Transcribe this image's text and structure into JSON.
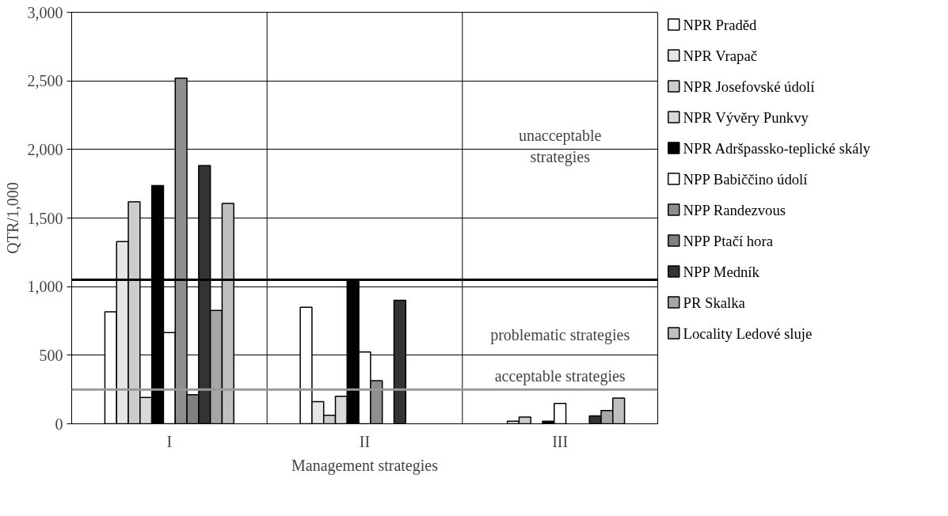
{
  "chart_data": {
    "type": "bar",
    "xlabel": "Management strategies",
    "ylabel": "QTR/1,000",
    "categories": [
      "I",
      "II",
      "III"
    ],
    "series": [
      {
        "name": "NPR Praděd",
        "color": "#ffffff",
        "values": [
          817,
          850,
          null
        ]
      },
      {
        "name": "NPR Vrapač",
        "color": "#e6e6e6",
        "values": [
          1329,
          161,
          19
        ]
      },
      {
        "name": "NPR Josefovské údolí",
        "color": "#cccccc",
        "values": [
          1618,
          62,
          49
        ]
      },
      {
        "name": "NPR Vývěry Punkvy",
        "color": "#d9d9d9",
        "values": [
          192,
          200,
          null
        ]
      },
      {
        "name": "NPR Adršpassko-teplické skály",
        "color": "#000000",
        "values": [
          1736,
          1050,
          19
        ]
      },
      {
        "name": "NPP Babiččino údolí",
        "color": "#ffffff",
        "values": [
          665,
          524,
          149
        ]
      },
      {
        "name": "NPP Randezvous",
        "color": "#8c8e90",
        "values": [
          2520,
          314,
          null
        ]
      },
      {
        "name": "NPP Ptačí hora",
        "color": "#808080",
        "values": [
          212,
          null,
          null
        ]
      },
      {
        "name": "NPP Medník",
        "color": "#333333",
        "values": [
          1882,
          900,
          58
        ]
      },
      {
        "name": "PR Skalka",
        "color": "#a6a6a6",
        "values": [
          827,
          null,
          96
        ]
      },
      {
        "name": "Locality Ledové sluje",
        "color": "#bfbfbf",
        "values": [
          1607,
          null,
          188
        ]
      }
    ],
    "ylim": [
      0,
      3000
    ],
    "yticks": [
      0,
      {
        "value": 500,
        "label": "500"
      },
      {
        "value": 1000,
        "label": "1,000"
      },
      {
        "value": 1500,
        "label": "1,500"
      },
      {
        "value": 2000,
        "label": "2,000"
      },
      {
        "value": 2500,
        "label": "2,500"
      },
      {
        "value": 3000,
        "label": "3,000"
      }
    ],
    "ref_lines": [
      {
        "axis": "y",
        "value": 1050,
        "color": "#000000"
      },
      {
        "axis": "y",
        "value": 250,
        "color": "#999999"
      }
    ],
    "annotations": [
      "unacceptable\nstrategies",
      "problematic strategies",
      "acceptable strategies"
    ],
    "grid": true,
    "legend": "right"
  }
}
